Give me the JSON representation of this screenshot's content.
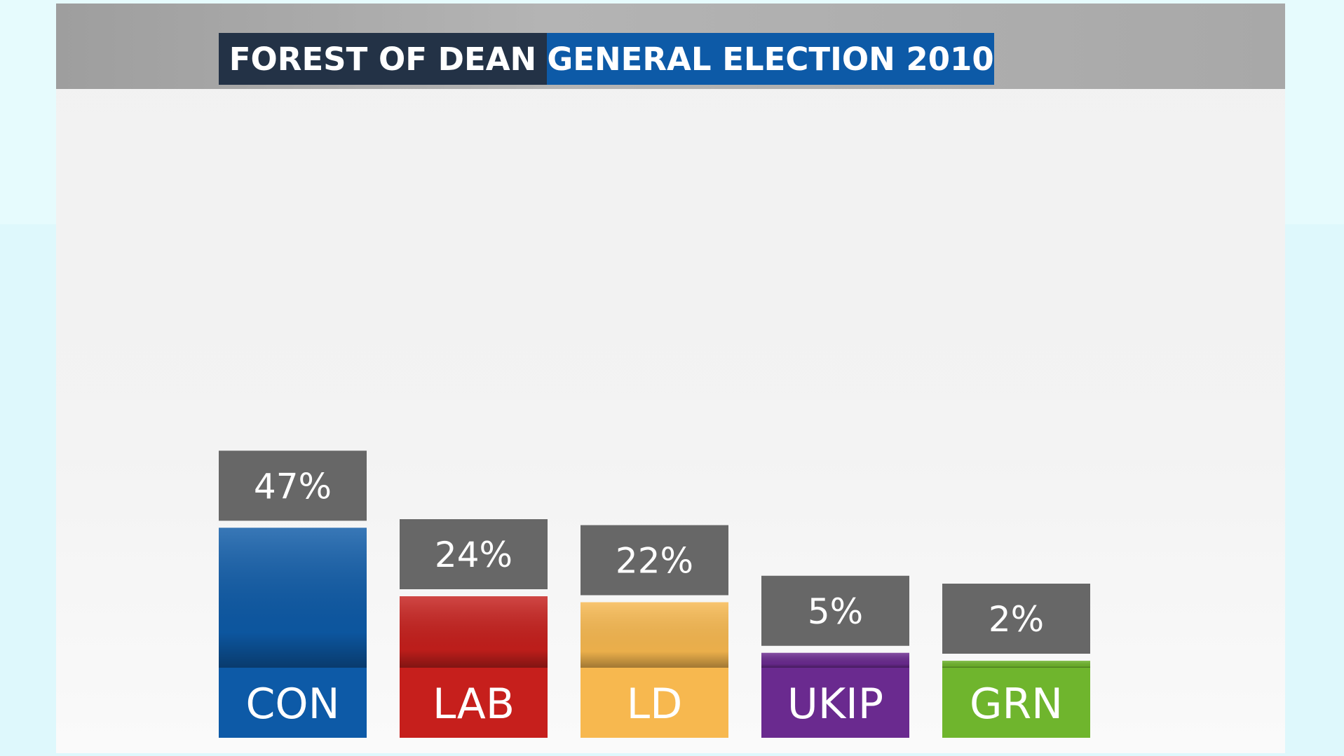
{
  "header": {
    "constituency": "FOREST OF DEAN",
    "election": "GENERAL ELECTION 2010"
  },
  "chart_data": {
    "type": "bar",
    "title": "FOREST OF DEAN GENERAL ELECTION 2010",
    "categories": [
      "CON",
      "LAB",
      "LD",
      "UKIP",
      "GRN"
    ],
    "values": [
      47,
      24,
      22,
      5,
      2
    ],
    "value_labels": [
      "47%",
      "24%",
      "22%",
      "5%",
      "2%"
    ],
    "colors": [
      "#0d5aa7",
      "#c61f1c",
      "#f7b84f",
      "#6a2a8f",
      "#6fb52d"
    ],
    "label_box_color": "#676767",
    "xlabel": "",
    "ylabel": "",
    "unit": "%"
  }
}
